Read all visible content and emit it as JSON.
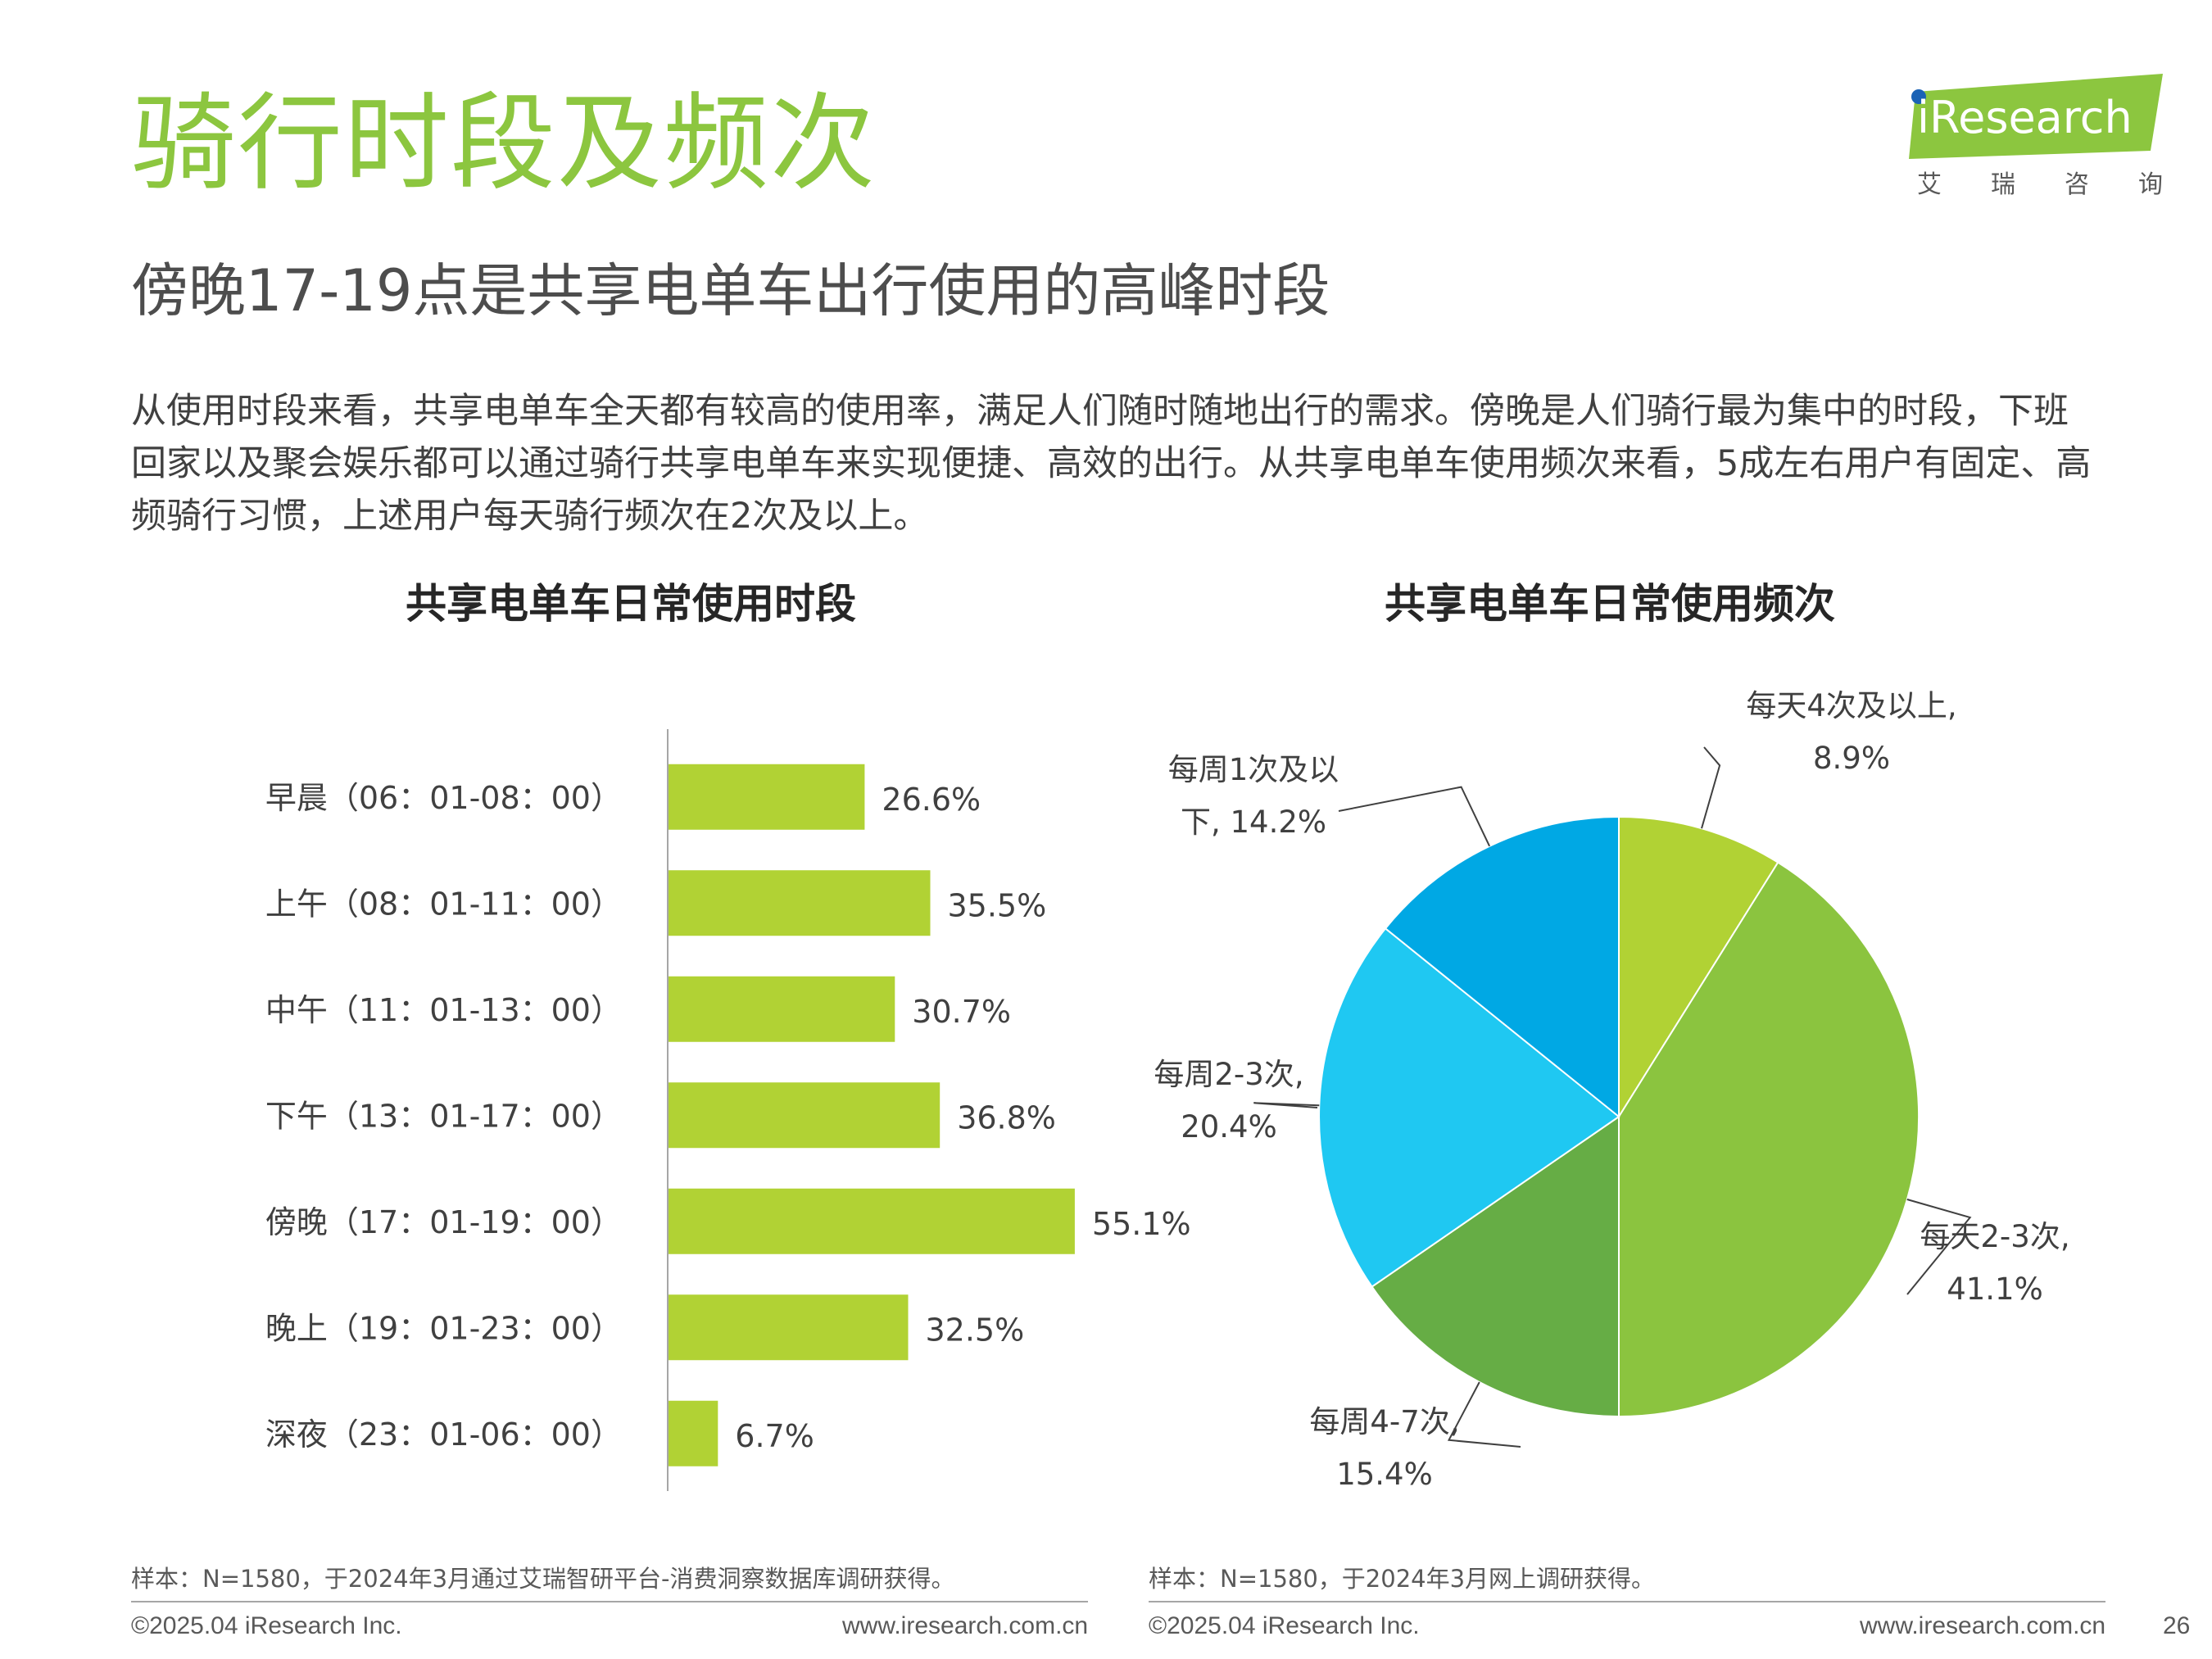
{
  "header": {
    "title": "骑行时段及频次",
    "subtitle": "傍晚17-19点是共享电单车出行使用的高峰时段",
    "logo_text": "iResearch",
    "logo_tagline": [
      "艾",
      "瑞",
      "咨",
      "询"
    ]
  },
  "summary": "从使用时段来看，共享电单车全天都有较高的使用率，满足人们随时随地出行的需求。傍晚是人们骑行最为集中的时段，下班回家以及聚会娱乐都可以通过骑行共享电单车来实现便捷、高效的出行。从共享电单车使用频次来看，5成左右用户有固定、高频骑行习惯，上述用户每天骑行频次在2次及以上。",
  "colors": {
    "brand_green": "#8cc63f",
    "bar_color": "#b1d234",
    "pie_colors": [
      "#b1d234",
      "#8bc43f",
      "#66ad45",
      "#1fc8f2",
      "#00a8e4"
    ]
  },
  "chart_data": [
    {
      "type": "bar",
      "orientation": "horizontal",
      "title": "共享电单车日常使用时段",
      "categories": [
        "早晨（06：01-08：00）",
        "上午（08：01-11：00）",
        "中午（11：01-13：00）",
        "下午（13：01-17：00）",
        "傍晚（17：01-19：00）",
        "晚上（19：01-23：00）",
        "深夜（23：01-06：00）"
      ],
      "values": [
        26.6,
        35.5,
        30.7,
        36.8,
        55.1,
        32.5,
        6.7
      ],
      "value_labels": [
        "26.6%",
        "35.5%",
        "30.7%",
        "36.8%",
        "55.1%",
        "32.5%",
        "6.7%"
      ],
      "unit": "%",
      "xlim": [
        0,
        100
      ],
      "grid": false
    },
    {
      "type": "pie",
      "title": "共享电单车日常使用频次",
      "slices": [
        {
          "label_lines": [
            "每天4次及以上,",
            "8.9%"
          ],
          "value": 8.9
        },
        {
          "label_lines": [
            "每天2-3次,",
            "41.1%"
          ],
          "value": 41.1
        },
        {
          "label_lines": [
            "每周4-7次,",
            "15.4%"
          ],
          "value": 15.4
        },
        {
          "label_lines": [
            "每周2-3次,",
            "20.4%"
          ],
          "value": 20.4
        },
        {
          "label_lines": [
            "每周1次及以",
            "下, 14.2%"
          ],
          "value": 14.2
        }
      ],
      "start": "12 o'clock",
      "direction": "clockwise",
      "labels": "outside with leader lines"
    }
  ],
  "sources": [
    "样本：N=1580，于2024年3月通过艾瑞智研平台-消费洞察数据库调研获得。",
    "样本：N=1580，于2024年3月网上调研获得。"
  ],
  "footer": {
    "copyright": "©2025.04 iResearch Inc.",
    "website": "www.iresearch.com.cn",
    "page_number": "26"
  }
}
